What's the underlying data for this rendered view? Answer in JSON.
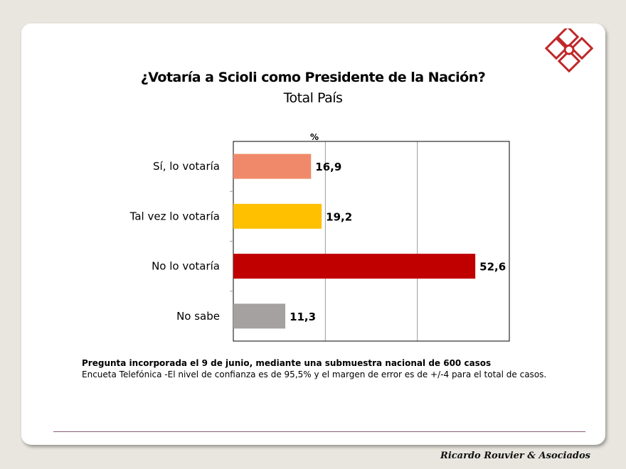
{
  "chart_data": {
    "type": "bar",
    "orientation": "horizontal",
    "title": "¿Votaría a Scioli como Presidente de la Nación?",
    "subtitle": "Total País",
    "unit_label": "%",
    "categories": [
      "Sí, lo votaría",
      "Tal vez lo votaría",
      "No lo votaría",
      "No sabe"
    ],
    "values": [
      16.9,
      19.2,
      52.6,
      11.3
    ],
    "value_labels": [
      "16,9",
      "19,2",
      "52,6",
      "11,3"
    ],
    "colors": [
      "#f0896a",
      "#ffc000",
      "#c00000",
      "#a6a1a1"
    ],
    "xlim": [
      0,
      60
    ],
    "gridlines": [
      20,
      40
    ],
    "grid": true,
    "legend": "none"
  },
  "notes": {
    "line1": "Pregunta incorporada el 9 de junio, mediante una submuestra nacional de 600 casos",
    "line2": "Encueta Telefónica  -El nivel de confianza es de 95,5% y el margen de error es de +/-4 para el total de casos."
  },
  "footer": {
    "brand": "Ricardo Rouvier & Asociados"
  },
  "logo": {
    "icon": "diamond-squares-logo",
    "color": "#c0282a"
  }
}
